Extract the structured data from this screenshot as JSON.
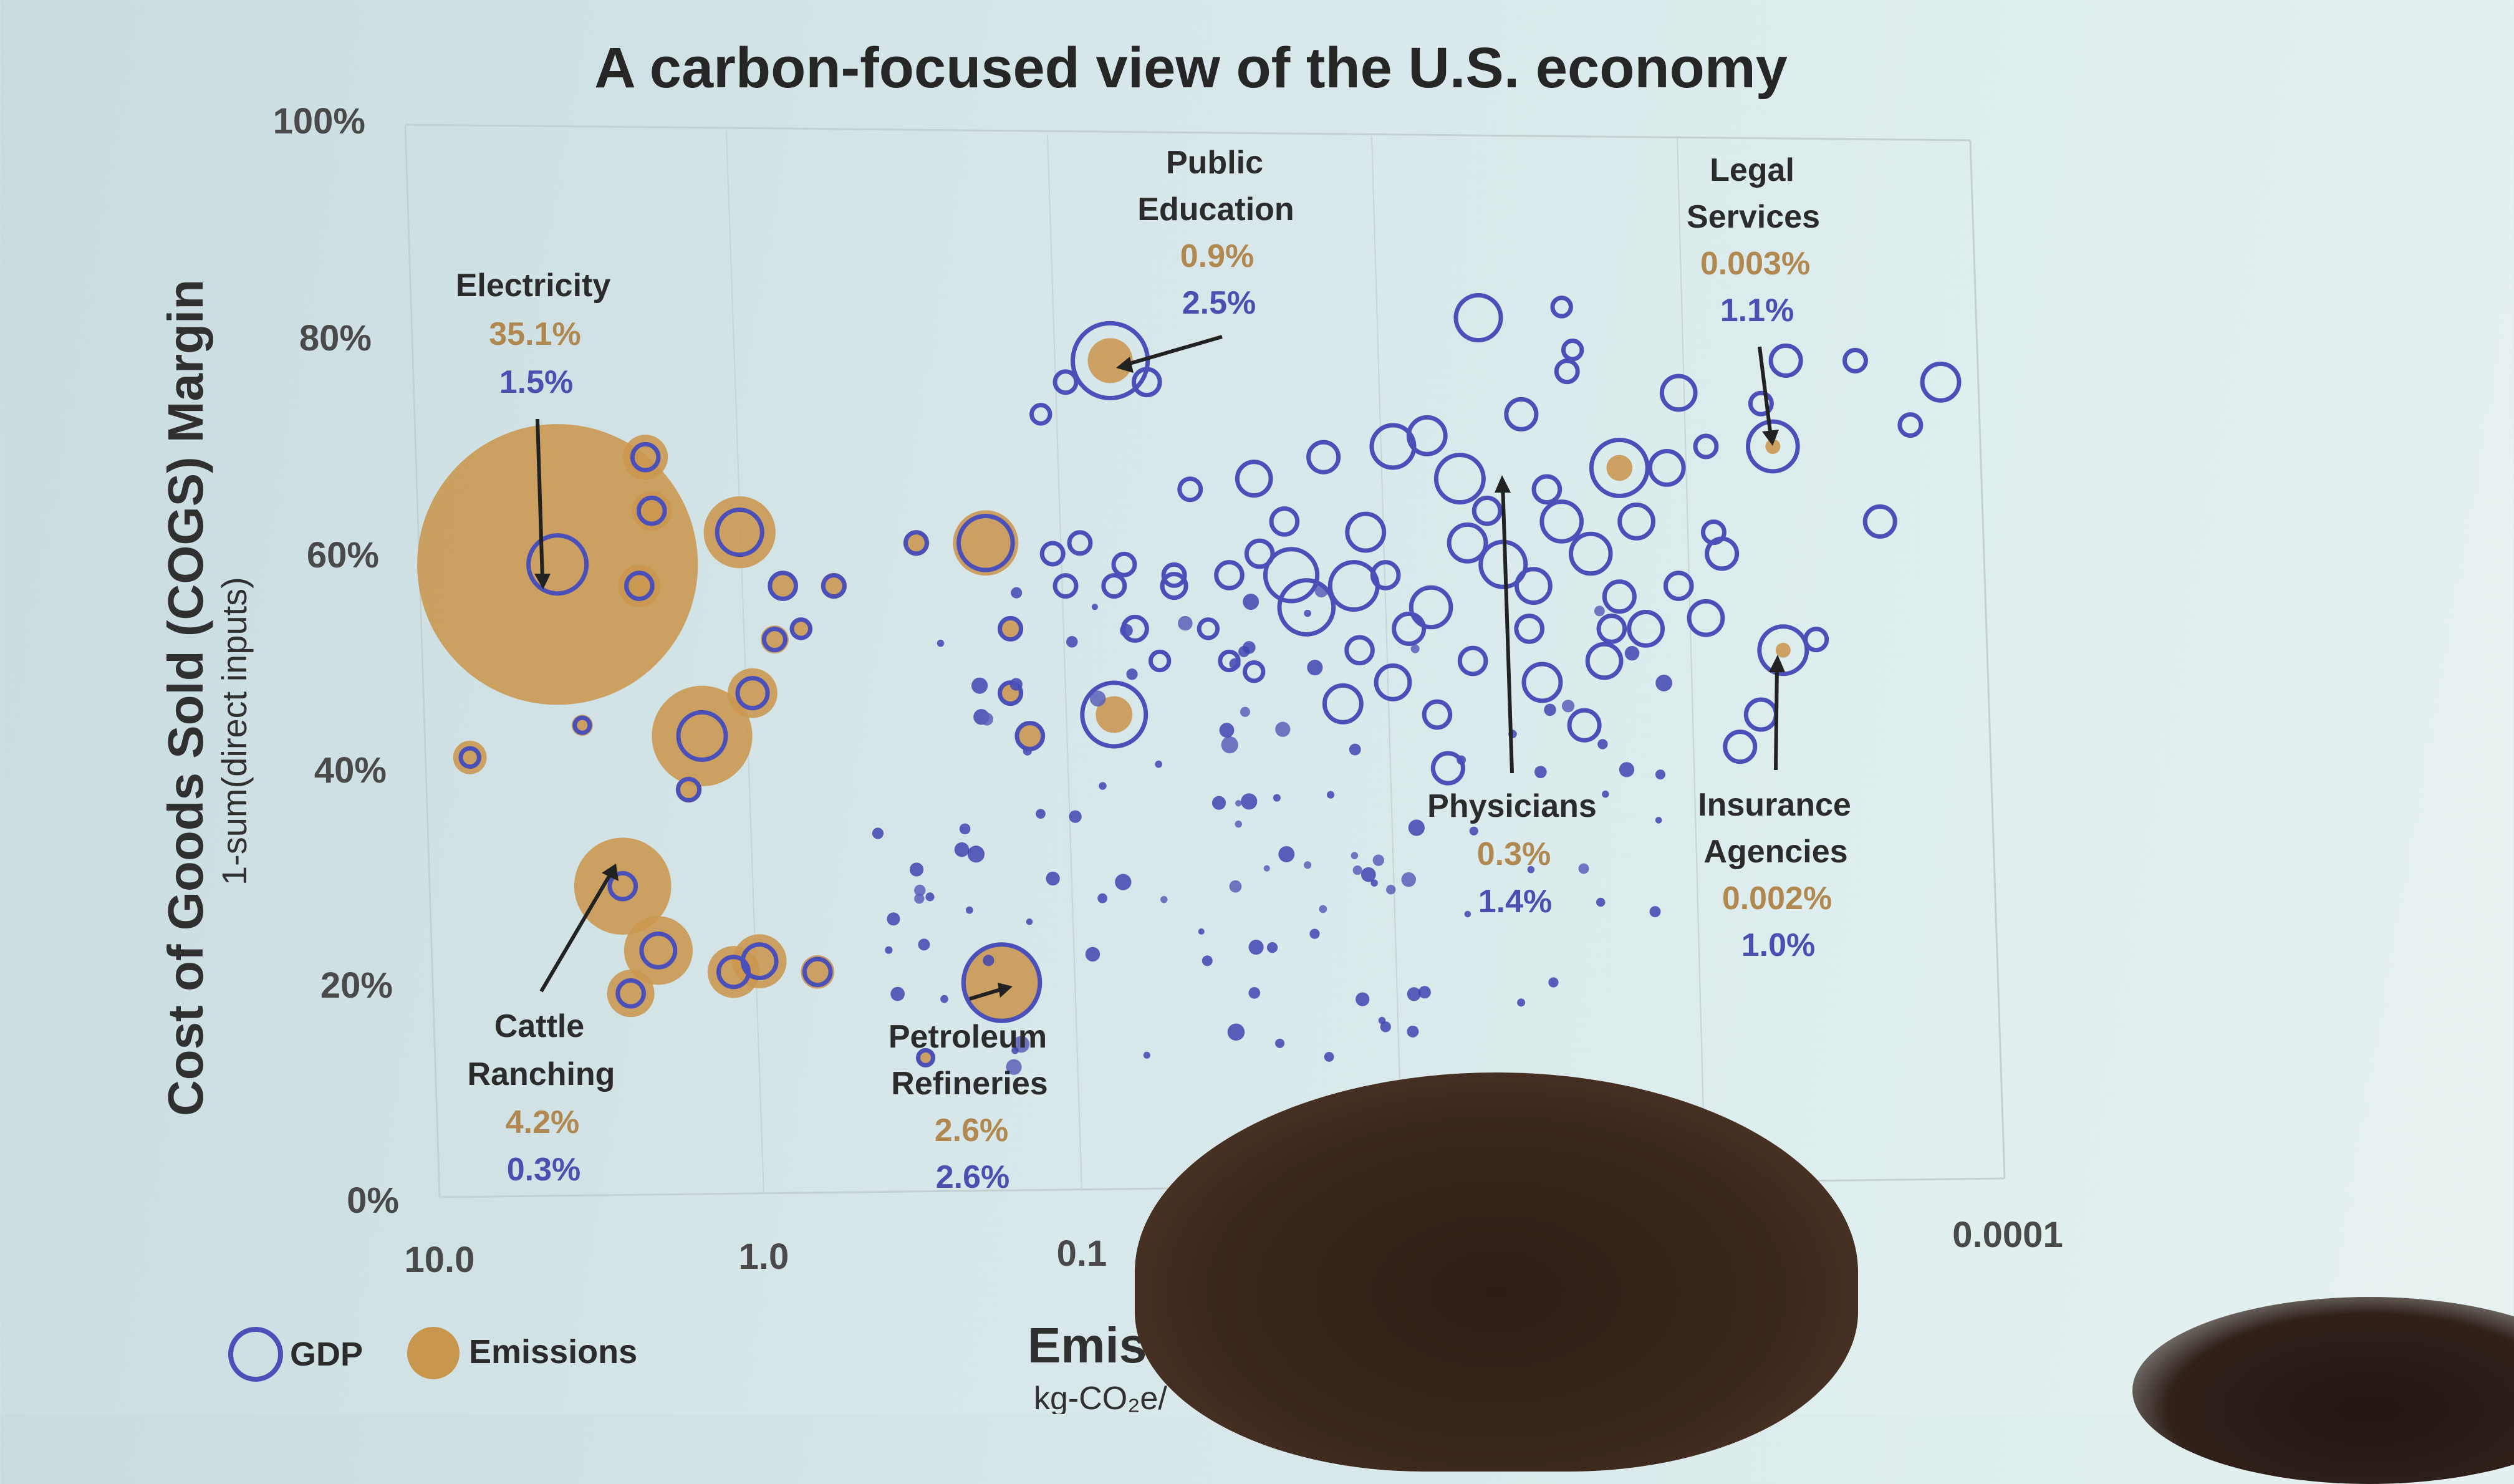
{
  "chart_data": {
    "type": "scatter",
    "title": "A carbon-focused view of the U.S. economy",
    "ylabel": "Cost of Goods Sold (COGS) Margin",
    "ylabel_sub": "1-sum(direct inputs)",
    "xlabel": "Emissi",
    "xlabel_sub": "kg-CO₂e/",
    "x_scale": "log-reversed",
    "xlim": [
      10.0,
      0.0001
    ],
    "ylim": [
      0,
      100
    ],
    "y_ticks": [
      "0%",
      "20%",
      "40%",
      "60%",
      "80%",
      "100%"
    ],
    "x_ticks": [
      "10.0",
      "1.0",
      "0.1",
      "0.0001"
    ],
    "legend": {
      "placement": "bottom-left",
      "gdp_label": "GDP",
      "emissions_label": "Emissions"
    },
    "colors": {
      "gdp": "#4b4fb8",
      "emissions": "#c9964e",
      "emissions_text": "#b08850"
    },
    "annotations": [
      {
        "name_lines": [
          "Electricity"
        ],
        "emissions": "35.1%",
        "gdp": "1.5%"
      },
      {
        "name_lines": [
          "Public",
          "Education"
        ],
        "emissions": "0.9%",
        "gdp": "2.5%"
      },
      {
        "name_lines": [
          "Legal",
          "Services"
        ],
        "emissions": "0.003%",
        "gdp": "1.1%"
      },
      {
        "name_lines": [
          "Cattle",
          "Ranching"
        ],
        "emissions": "4.2%",
        "gdp": "0.3%"
      },
      {
        "name_lines": [
          "Petroleum",
          "Refineries"
        ],
        "emissions": "2.6%",
        "gdp": "2.6%"
      },
      {
        "name_lines": [
          "Physicians"
        ],
        "emissions": "0.3%",
        "gdp": "1.4%"
      },
      {
        "name_lines": [
          "Insurance",
          "Agencies"
        ],
        "emissions": "0.002%",
        "gdp": "1.0%"
      }
    ],
    "points": [
      {
        "x": 4.2,
        "y": 59,
        "em": 35.1,
        "gdp": 1.5
      },
      {
        "x": 2.6,
        "y": 29,
        "em": 4.2,
        "gdp": 0.3
      },
      {
        "x": 0.16,
        "y": 20,
        "em": 2.6,
        "gdp": 2.6
      },
      {
        "x": 0.072,
        "y": 78,
        "em": 0.9,
        "gdp": 2.5
      },
      {
        "x": 0.0017,
        "y": 68,
        "em": 0.3,
        "gdp": 1.4
      },
      {
        "x": 0.00055,
        "y": 70,
        "em": 0.003,
        "gdp": 1.1
      },
      {
        "x": 0.00051,
        "y": 51,
        "em": 0.002,
        "gdp": 1.0
      },
      {
        "x": 1.45,
        "y": 43,
        "em": 4.5,
        "gdp": 1.0
      },
      {
        "x": 1.1,
        "y": 62,
        "em": 2.3,
        "gdp": 0.9
      },
      {
        "x": 0.18,
        "y": 61,
        "em": 1.9,
        "gdp": 1.3
      },
      {
        "x": 2.0,
        "y": 23,
        "em": 2.1,
        "gdp": 0.5
      },
      {
        "x": 1.15,
        "y": 21,
        "em": 1.2,
        "gdp": 0.4
      },
      {
        "x": 0.07,
        "y": 45,
        "em": 0.6,
        "gdp": 1.8
      },
      {
        "x": 2.2,
        "y": 69,
        "em": 0.9,
        "gdp": 0.3
      },
      {
        "x": 2.1,
        "y": 64,
        "em": 0.7,
        "gdp": 0.3
      },
      {
        "x": 2.3,
        "y": 57,
        "em": 0.8,
        "gdp": 0.3
      },
      {
        "x": 2.45,
        "y": 19,
        "em": 1.0,
        "gdp": 0.3
      },
      {
        "x": 1.0,
        "y": 47,
        "em": 1.1,
        "gdp": 0.4
      },
      {
        "x": 0.95,
        "y": 22,
        "em": 1.3,
        "gdp": 0.5
      },
      {
        "x": 0.62,
        "y": 21,
        "em": 0.5,
        "gdp": 0.3
      },
      {
        "x": 0.8,
        "y": 57,
        "em": 0.4,
        "gdp": 0.3
      },
      {
        "x": 0.85,
        "y": 52,
        "em": 0.35,
        "gdp": 0.2
      },
      {
        "x": 0.55,
        "y": 57,
        "em": 0.3,
        "gdp": 0.2
      },
      {
        "x": 0.3,
        "y": 61,
        "em": 0.3,
        "gdp": 0.2
      },
      {
        "x": 8.0,
        "y": 41,
        "em": 0.5,
        "gdp": 0.15
      },
      {
        "x": 3.5,
        "y": 44,
        "em": 0.2,
        "gdp": 0.1
      },
      {
        "x": 1.6,
        "y": 38,
        "em": 0.3,
        "gdp": 0.2
      },
      {
        "x": 0.15,
        "y": 53,
        "em": 0.15,
        "gdp": 0.2
      },
      {
        "x": 0.13,
        "y": 43,
        "em": 0.25,
        "gdp": 0.3
      },
      {
        "x": 0.15,
        "y": 47,
        "em": 0.2,
        "gdp": 0.2
      },
      {
        "x": 0.28,
        "y": 13,
        "em": 0.1,
        "gdp": 0.1
      },
      {
        "x": 0.7,
        "y": 53,
        "em": 0.2,
        "gdp": 0.15
      },
      {
        "x": 0.0048,
        "y": 82,
        "em": 0.0,
        "gdp": 0.9
      },
      {
        "x": 0.0011,
        "y": 75,
        "em": 0.0,
        "gdp": 0.5
      },
      {
        "x": 0.00016,
        "y": 76,
        "em": 0.0,
        "gdp": 0.6
      },
      {
        "x": 0.009,
        "y": 70,
        "em": 0.0,
        "gdp": 0.8
      },
      {
        "x": 0.0055,
        "y": 67,
        "em": 0.0,
        "gdp": 1.0
      },
      {
        "x": 0.019,
        "y": 58,
        "em": 0.0,
        "gdp": 1.2
      },
      {
        "x": 0.017,
        "y": 55,
        "em": 0.0,
        "gdp": 1.3
      },
      {
        "x": 0.012,
        "y": 57,
        "em": 0.0,
        "gdp": 1.0
      },
      {
        "x": 0.004,
        "y": 59,
        "em": 0.0,
        "gdp": 0.9
      },
      {
        "x": 0.0026,
        "y": 63,
        "em": 0.0,
        "gdp": 0.7
      },
      {
        "x": 0.0009,
        "y": 54,
        "em": 0.0,
        "gdp": 0.5
      },
      {
        "x": 0.0006,
        "y": 45,
        "em": 0.0,
        "gdp": 0.4
      },
      {
        "x": 0.003,
        "y": 48,
        "em": 0.0,
        "gdp": 0.6
      },
      {
        "x": 0.025,
        "y": 67,
        "em": 0.0,
        "gdp": 0.5
      },
      {
        "x": 0.013,
        "y": 46,
        "em": 0.0,
        "gdp": 0.6
      },
      {
        "x": 0.0021,
        "y": 60,
        "em": 0.0,
        "gdp": 0.7
      },
      {
        "x": 0.0052,
        "y": 61,
        "em": 0.0,
        "gdp": 0.6
      },
      {
        "x": 0.0017,
        "y": 56,
        "em": 0.0,
        "gdp": 0.4
      },
      {
        "x": 0.0015,
        "y": 63,
        "em": 0.0,
        "gdp": 0.5
      },
      {
        "x": 0.0008,
        "y": 60,
        "em": 0.0,
        "gdp": 0.4
      },
      {
        "x": 0.007,
        "y": 71,
        "em": 0.0,
        "gdp": 0.6
      },
      {
        "x": 0.0012,
        "y": 68,
        "em": 0.0,
        "gdp": 0.5
      },
      {
        "x": 0.00025,
        "y": 63,
        "em": 0.0,
        "gdp": 0.4
      },
      {
        "x": 0.0032,
        "y": 57,
        "em": 0.0,
        "gdp": 0.5
      },
      {
        "x": 0.0068,
        "y": 55,
        "em": 0.0,
        "gdp": 0.7
      },
      {
        "x": 0.011,
        "y": 62,
        "em": 0.0,
        "gdp": 0.6
      },
      {
        "x": 0.008,
        "y": 53,
        "em": 0.0,
        "gdp": 0.4
      },
      {
        "x": 0.006,
        "y": 40,
        "em": 0.0,
        "gdp": 0.4
      },
      {
        "x": 0.009,
        "y": 48,
        "em": 0.0,
        "gdp": 0.5
      },
      {
        "x": 0.0019,
        "y": 50,
        "em": 0.0,
        "gdp": 0.5
      },
      {
        "x": 0.0022,
        "y": 44,
        "em": 0.0,
        "gdp": 0.4
      },
      {
        "x": 0.0014,
        "y": 53,
        "em": 0.0,
        "gdp": 0.5
      },
      {
        "x": 0.0007,
        "y": 42,
        "em": 0.0,
        "gdp": 0.4
      },
      {
        "x": 0.0005,
        "y": 78,
        "em": 0.0,
        "gdp": 0.4
      },
      {
        "x": 0.0035,
        "y": 73,
        "em": 0.0,
        "gdp": 0.4
      },
      {
        "x": 0.015,
        "y": 69,
        "em": 0.0,
        "gdp": 0.4
      },
      {
        "x": 0.03,
        "y": 58,
        "em": 0.0,
        "gdp": 0.3
      },
      {
        "x": 0.024,
        "y": 60,
        "em": 0.0,
        "gdp": 0.3
      },
      {
        "x": 0.02,
        "y": 63,
        "em": 0.0,
        "gdp": 0.3
      },
      {
        "x": 0.0045,
        "y": 64,
        "em": 0.0,
        "gdp": 0.3
      },
      {
        "x": 0.0029,
        "y": 66,
        "em": 0.0,
        "gdp": 0.3
      },
      {
        "x": 0.0033,
        "y": 53,
        "em": 0.0,
        "gdp": 0.3
      },
      {
        "x": 0.0095,
        "y": 58,
        "em": 0.0,
        "gdp": 0.3
      },
      {
        "x": 0.0115,
        "y": 51,
        "em": 0.0,
        "gdp": 0.3
      },
      {
        "x": 0.005,
        "y": 50,
        "em": 0.0,
        "gdp": 0.3
      },
      {
        "x": 0.0065,
        "y": 45,
        "em": 0.0,
        "gdp": 0.3
      },
      {
        "x": 0.0018,
        "y": 53,
        "em": 0.0,
        "gdp": 0.3
      },
      {
        "x": 0.0011,
        "y": 57,
        "em": 0.0,
        "gdp": 0.3
      },
      {
        "x": 0.0003,
        "y": 78,
        "em": 0.0,
        "gdp": 0.2
      },
      {
        "x": 0.0002,
        "y": 72,
        "em": 0.0,
        "gdp": 0.2
      },
      {
        "x": 0.00085,
        "y": 62,
        "em": 0.0,
        "gdp": 0.2
      },
      {
        "x": 0.0025,
        "y": 77,
        "em": 0.0,
        "gdp": 0.2
      },
      {
        "x": 0.0024,
        "y": 79,
        "em": 0.0,
        "gdp": 0.15
      },
      {
        "x": 0.0009,
        "y": 70,
        "em": 0.0,
        "gdp": 0.2
      },
      {
        "x": 0.0004,
        "y": 52,
        "em": 0.0,
        "gdp": 0.2
      },
      {
        "x": 0.0026,
        "y": 83,
        "em": 0.0,
        "gdp": 0.15
      },
      {
        "x": 0.0006,
        "y": 74,
        "em": 0.0,
        "gdp": 0.2
      },
      {
        "x": 0.04,
        "y": 66,
        "em": 0.0,
        "gdp": 0.2
      },
      {
        "x": 0.045,
        "y": 57,
        "em": 0.0,
        "gdp": 0.25
      },
      {
        "x": 0.06,
        "y": 53,
        "em": 0.0,
        "gdp": 0.25
      },
      {
        "x": 0.09,
        "y": 61,
        "em": 0.0,
        "gdp": 0.2
      },
      {
        "x": 0.1,
        "y": 57,
        "em": 0.0,
        "gdp": 0.2
      },
      {
        "x": 0.11,
        "y": 60,
        "em": 0.0,
        "gdp": 0.2
      },
      {
        "x": 0.07,
        "y": 57,
        "em": 0.0,
        "gdp": 0.2
      },
      {
        "x": 0.065,
        "y": 59,
        "em": 0.0,
        "gdp": 0.2
      },
      {
        "x": 0.05,
        "y": 50,
        "em": 0.0,
        "gdp": 0.15
      },
      {
        "x": 0.035,
        "y": 53,
        "em": 0.0,
        "gdp": 0.15
      },
      {
        "x": 0.03,
        "y": 50,
        "em": 0.0,
        "gdp": 0.15
      },
      {
        "x": 0.025,
        "y": 49,
        "em": 0.0,
        "gdp": 0.15
      },
      {
        "x": 0.1,
        "y": 76,
        "em": 0.0,
        "gdp": 0.2
      },
      {
        "x": 0.12,
        "y": 73,
        "em": 0.0,
        "gdp": 0.15
      },
      {
        "x": 0.055,
        "y": 76,
        "em": 0.0,
        "gdp": 0.3
      },
      {
        "x": 0.045,
        "y": 58,
        "em": 0.0,
        "gdp": 0.2
      }
    ],
    "minor_dots": 110
  }
}
